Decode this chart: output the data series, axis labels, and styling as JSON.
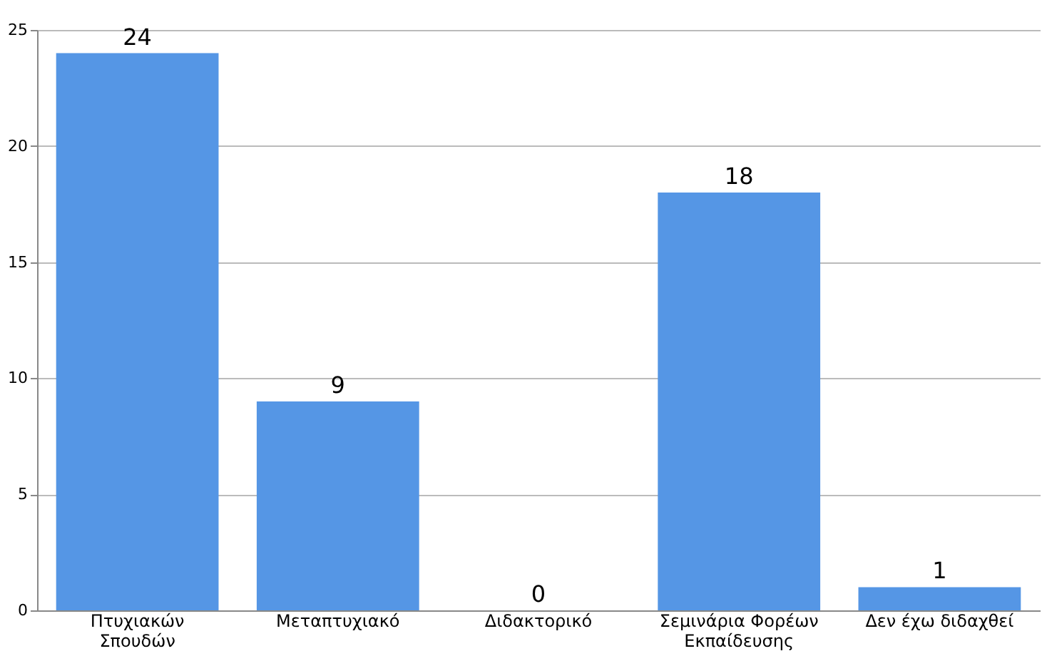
{
  "chart_data": {
    "type": "bar",
    "categories": [
      "Πτυχιακών\nΣπουδών",
      "Μεταπτυχιακό",
      "Διδακτορικό",
      "Σεμινάρια Φορέων\nΕκπαίδευσης",
      "Δεν έχω διδαχθεί"
    ],
    "values": [
      24,
      9,
      0,
      18,
      1
    ],
    "color": "#5596e5",
    "ylim": [
      0,
      25
    ],
    "yticks": [
      0,
      5,
      10,
      15,
      20,
      25
    ],
    "grid": "y",
    "data_labels": true
  }
}
